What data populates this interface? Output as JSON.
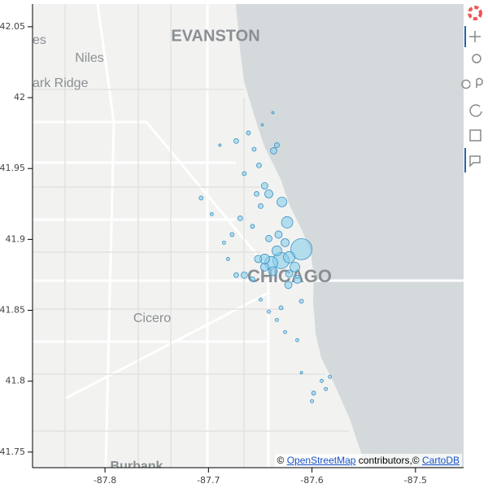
{
  "chart_data": {
    "type": "scatter",
    "x": [
      -87.6102,
      -87.6299,
      -87.6394,
      -87.622,
      -87.6339,
      -87.6165,
      -87.6457,
      -87.626,
      -87.624,
      -87.6291,
      -87.6142,
      -87.6228,
      -87.6654,
      -87.6732,
      -87.6575,
      -87.6339,
      -87.637,
      -87.6512,
      -87.6457,
      -87.6417,
      -87.6535,
      -87.6496,
      -87.6732,
      -87.6614,
      -87.6559,
      -87.6654,
      -87.6693,
      -87.6772,
      -87.6575,
      -87.6417,
      -87.7071,
      -87.6969,
      -87.685,
      -87.6811,
      -87.6496,
      -87.6417,
      -87.6299,
      -87.6339,
      -87.6102,
      -87.626,
      -87.6142,
      -87.5984,
      -87.5906,
      -87.5866,
      -87.6,
      -87.5827,
      -87.6102,
      -87.6378,
      -87.648,
      -87.689,
      -87.6457,
      -87.6378,
      -87.622,
      -87.652,
      -87.6323
    ],
    "y": [
      41.8931,
      41.8851,
      41.8834,
      41.8874,
      41.892,
      41.8805,
      41.8805,
      41.8977,
      41.912,
      41.9264,
      41.8719,
      41.8679,
      41.8748,
      41.8748,
      41.8719,
      41.9665,
      41.9625,
      41.9522,
      41.9378,
      41.9321,
      41.9321,
      41.9235,
      41.9694,
      41.9751,
      41.9636,
      41.9464,
      41.9149,
      41.9034,
      41.9092,
      41.9006,
      41.9292,
      41.9178,
      41.8977,
      41.8862,
      41.8576,
      41.849,
      41.8518,
      41.8432,
      41.8564,
      41.8346,
      41.8289,
      41.7916,
      41.8002,
      41.7945,
      41.7859,
      41.8031,
      41.806,
      41.9894,
      41.9808,
      41.9665,
      41.8862,
      41.8776,
      41.8759,
      41.8862,
      41.9034
    ],
    "sizes": [
      26,
      20,
      16,
      14,
      12,
      12,
      10,
      10,
      14,
      12,
      10,
      9,
      8,
      6,
      6,
      6,
      8,
      6,
      8,
      10,
      6,
      6,
      6,
      5,
      5,
      5,
      6,
      5,
      5,
      8,
      5,
      4,
      4,
      4,
      4,
      4,
      5,
      4,
      5,
      4,
      4,
      5,
      4,
      4,
      4,
      4,
      3,
      3,
      3,
      3,
      12,
      11,
      9,
      9,
      9
    ],
    "color": "#87ceeb",
    "xlim": [
      -87.87,
      -87.4535
    ],
    "ylim": [
      41.739,
      42.066
    ],
    "xticks": [
      -87.8,
      -87.7,
      -87.6,
      -87.5
    ],
    "yticks": [
      41.75,
      41.8,
      41.85,
      41.9,
      41.95,
      42,
      42.05
    ],
    "map_labels": {
      "evanston": "EVANSTON",
      "niles": "Niles",
      "park_ridge": "ark Ridge",
      "skokie": "es",
      "cicero": "Cicero",
      "chicago": "CHICAGO",
      "burbank": "Burbank"
    },
    "attribution": {
      "prefix": "© ",
      "osm": "OpenStreetMap",
      "middle": " contributors,© ",
      "carto": "CartoDB"
    }
  }
}
